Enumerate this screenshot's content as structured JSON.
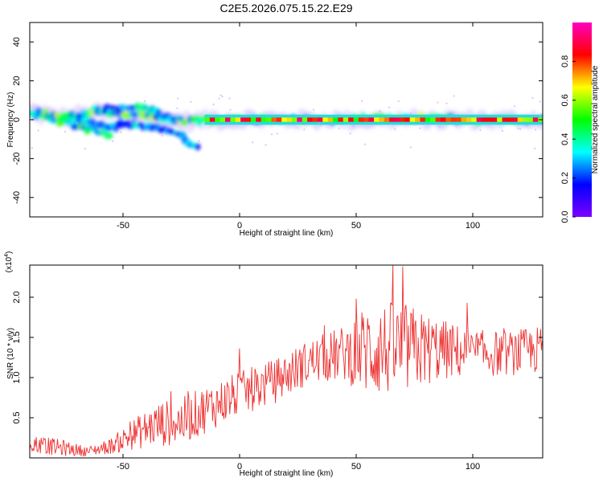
{
  "chart_data": [
    {
      "type": "heatmap",
      "title": "C2E5.2026.075.15.22.E29",
      "xlabel": "Height of straight line (km)",
      "ylabel": "Frequency (Hz)",
      "xlim": [
        -90,
        130
      ],
      "ylim": [
        -50,
        50
      ],
      "xticks": [
        -50,
        0,
        50,
        100
      ],
      "yticks": [
        -40,
        -20,
        0,
        20,
        40
      ],
      "colorbar": {
        "label": "Normalized spectral amplitude",
        "range": [
          0,
          1
        ],
        "ticks": [
          "0.0",
          "0.2",
          "0.4",
          "0.6",
          "0.8"
        ],
        "colors": [
          "#7d00ff",
          "#0000ff",
          "#00ffff",
          "#00ff00",
          "#ffff00",
          "#ff0000",
          "#ff00c0"
        ]
      },
      "ridges": [
        {
          "name": "main",
          "points": [
            [
              -90,
              3
            ],
            [
              -80,
              0
            ],
            [
              -70,
              -3
            ],
            [
              -60,
              -6
            ],
            [
              -55,
              -8
            ]
          ],
          "amplitude": 0.45
        },
        {
          "name": "upper",
          "points": [
            [
              -90,
              4
            ],
            [
              -75,
              1
            ],
            [
              -60,
              4
            ],
            [
              -50,
              3
            ],
            [
              -40,
              2
            ],
            [
              -30,
              0
            ],
            [
              -20,
              -1
            ],
            [
              -15,
              0
            ],
            [
              0,
              0
            ],
            [
              20,
              0
            ],
            [
              40,
              0
            ],
            [
              60,
              1
            ],
            [
              80,
              1
            ],
            [
              100,
              0
            ],
            [
              130,
              0
            ]
          ],
          "amplitude": 0.55
        },
        {
          "name": "branch",
          "points": [
            [
              -70,
              0
            ],
            [
              -55,
              -4
            ],
            [
              -45,
              -2
            ],
            [
              -35,
              -4
            ],
            [
              -25,
              -8
            ],
            [
              -20,
              -14
            ],
            [
              -17,
              -15
            ]
          ],
          "amplitude": 0.3
        },
        {
          "name": "high",
          "points": [
            [
              -62,
              5
            ],
            [
              -50,
              6
            ],
            [
              -42,
              6
            ],
            [
              -35,
              3
            ],
            [
              -25,
              0
            ]
          ],
          "amplitude": 0.35
        }
      ],
      "strong_segment": {
        "x": [
          -15,
          130
        ],
        "y": 0,
        "amplitude": 0.9
      }
    },
    {
      "type": "line",
      "xlabel": "Height of straight line (km)",
      "ylabel": "SNR (10 * v/v)",
      "scale_label": "(x10^4)",
      "xlim": [
        -90,
        130
      ],
      "ylim": [
        0,
        2.4
      ],
      "xticks": [
        -50,
        0,
        50,
        100
      ],
      "yticks": [
        "0.5",
        "1.0",
        "1.5",
        "2.0"
      ],
      "series": [
        {
          "color": "#ee3333",
          "envelope": [
            {
              "x": -90,
              "mean": 0.18,
              "spread": 0.12
            },
            {
              "x": -75,
              "mean": 0.12,
              "spread": 0.1
            },
            {
              "x": -65,
              "mean": 0.08,
              "spread": 0.06
            },
            {
              "x": -55,
              "mean": 0.15,
              "spread": 0.1
            },
            {
              "x": -45,
              "mean": 0.3,
              "spread": 0.2
            },
            {
              "x": -35,
              "mean": 0.42,
              "spread": 0.28
            },
            {
              "x": -25,
              "mean": 0.45,
              "spread": 0.3
            },
            {
              "x": -15,
              "mean": 0.6,
              "spread": 0.3
            },
            {
              "x": 0,
              "mean": 0.8,
              "spread": 0.28
            },
            {
              "x": 15,
              "mean": 0.95,
              "spread": 0.28
            },
            {
              "x": 30,
              "mean": 1.2,
              "spread": 0.28
            },
            {
              "x": 45,
              "mean": 1.3,
              "spread": 0.35
            },
            {
              "x": 55,
              "mean": 1.35,
              "spread": 0.6
            },
            {
              "x": 70,
              "mean": 1.35,
              "spread": 0.6
            },
            {
              "x": 85,
              "mean": 1.35,
              "spread": 0.4
            },
            {
              "x": 100,
              "mean": 1.3,
              "spread": 0.3
            },
            {
              "x": 115,
              "mean": 1.3,
              "spread": 0.28
            },
            {
              "x": 130,
              "mean": 1.35,
              "spread": 0.3
            }
          ]
        }
      ]
    }
  ]
}
